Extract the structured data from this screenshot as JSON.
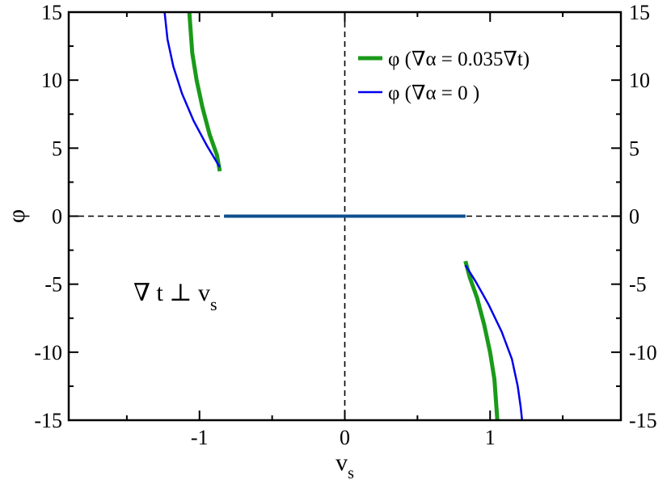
{
  "chart_data": {
    "type": "line",
    "xlabel": "v",
    "xlabel_sub": "s",
    "ylabel": "φ",
    "xlim": [
      -1.9,
      1.9
    ],
    "ylim": [
      -15,
      15
    ],
    "x_ticks": [
      -1,
      0,
      1
    ],
    "x_tick_labels": [
      "-1",
      "0",
      "1"
    ],
    "y_ticks": [
      -15,
      -10,
      -5,
      0,
      5,
      10,
      15
    ],
    "y_tick_labels": [
      "-15",
      "-10",
      "-5",
      "0",
      "5",
      "10",
      "15"
    ],
    "y_tick_labels_right": [
      "-15",
      "-10",
      "-5",
      "0",
      "5",
      "10",
      "15"
    ],
    "legend_placement": "top-right",
    "annotation": {
      "main": "∇ t ⊥ v",
      "sub": "s"
    },
    "reference_lines": [
      {
        "orientation": "horizontal",
        "value": 0,
        "style": "dashed"
      },
      {
        "orientation": "vertical",
        "value": 0,
        "style": "dashed"
      }
    ],
    "series": [
      {
        "name": "φ (∇α = 0.035∇t)",
        "color": "#1a9a1a",
        "segments": [
          [
            [
              -1.07,
              15
            ],
            [
              -1.06,
              13.5
            ],
            [
              -1.05,
              12
            ],
            [
              -1.02,
              10
            ],
            [
              -0.98,
              8
            ],
            [
              -0.93,
              6
            ],
            [
              -0.88,
              4.5
            ],
            [
              -0.86,
              3.3
            ]
          ],
          [
            [
              -0.83,
              0
            ],
            [
              0.83,
              0
            ]
          ],
          [
            [
              0.83,
              -3.3
            ],
            [
              0.86,
              -4.5
            ],
            [
              0.91,
              -6
            ],
            [
              0.96,
              -8
            ],
            [
              1.0,
              -10
            ],
            [
              1.03,
              -12
            ],
            [
              1.04,
              -13.5
            ],
            [
              1.05,
              -15
            ]
          ]
        ]
      },
      {
        "name": "φ (∇α = 0 )",
        "color": "#0000ee",
        "segments": [
          [
            [
              -1.24,
              15
            ],
            [
              -1.22,
              13
            ],
            [
              -1.18,
              11
            ],
            [
              -1.12,
              9
            ],
            [
              -1.04,
              7
            ],
            [
              -0.95,
              5.2
            ],
            [
              -0.86,
              3.6
            ]
          ],
          [
            [
              -0.83,
              0
            ],
            [
              0.83,
              0
            ]
          ],
          [
            [
              0.83,
              -3.6
            ],
            [
              0.9,
              -4.8
            ],
            [
              0.99,
              -6.5
            ],
            [
              1.08,
              -8.5
            ],
            [
              1.15,
              -10.5
            ],
            [
              1.19,
              -12.5
            ],
            [
              1.21,
              -14
            ],
            [
              1.22,
              -15
            ]
          ]
        ]
      }
    ],
    "horizontal_segment_color": "#0e4f8e"
  }
}
